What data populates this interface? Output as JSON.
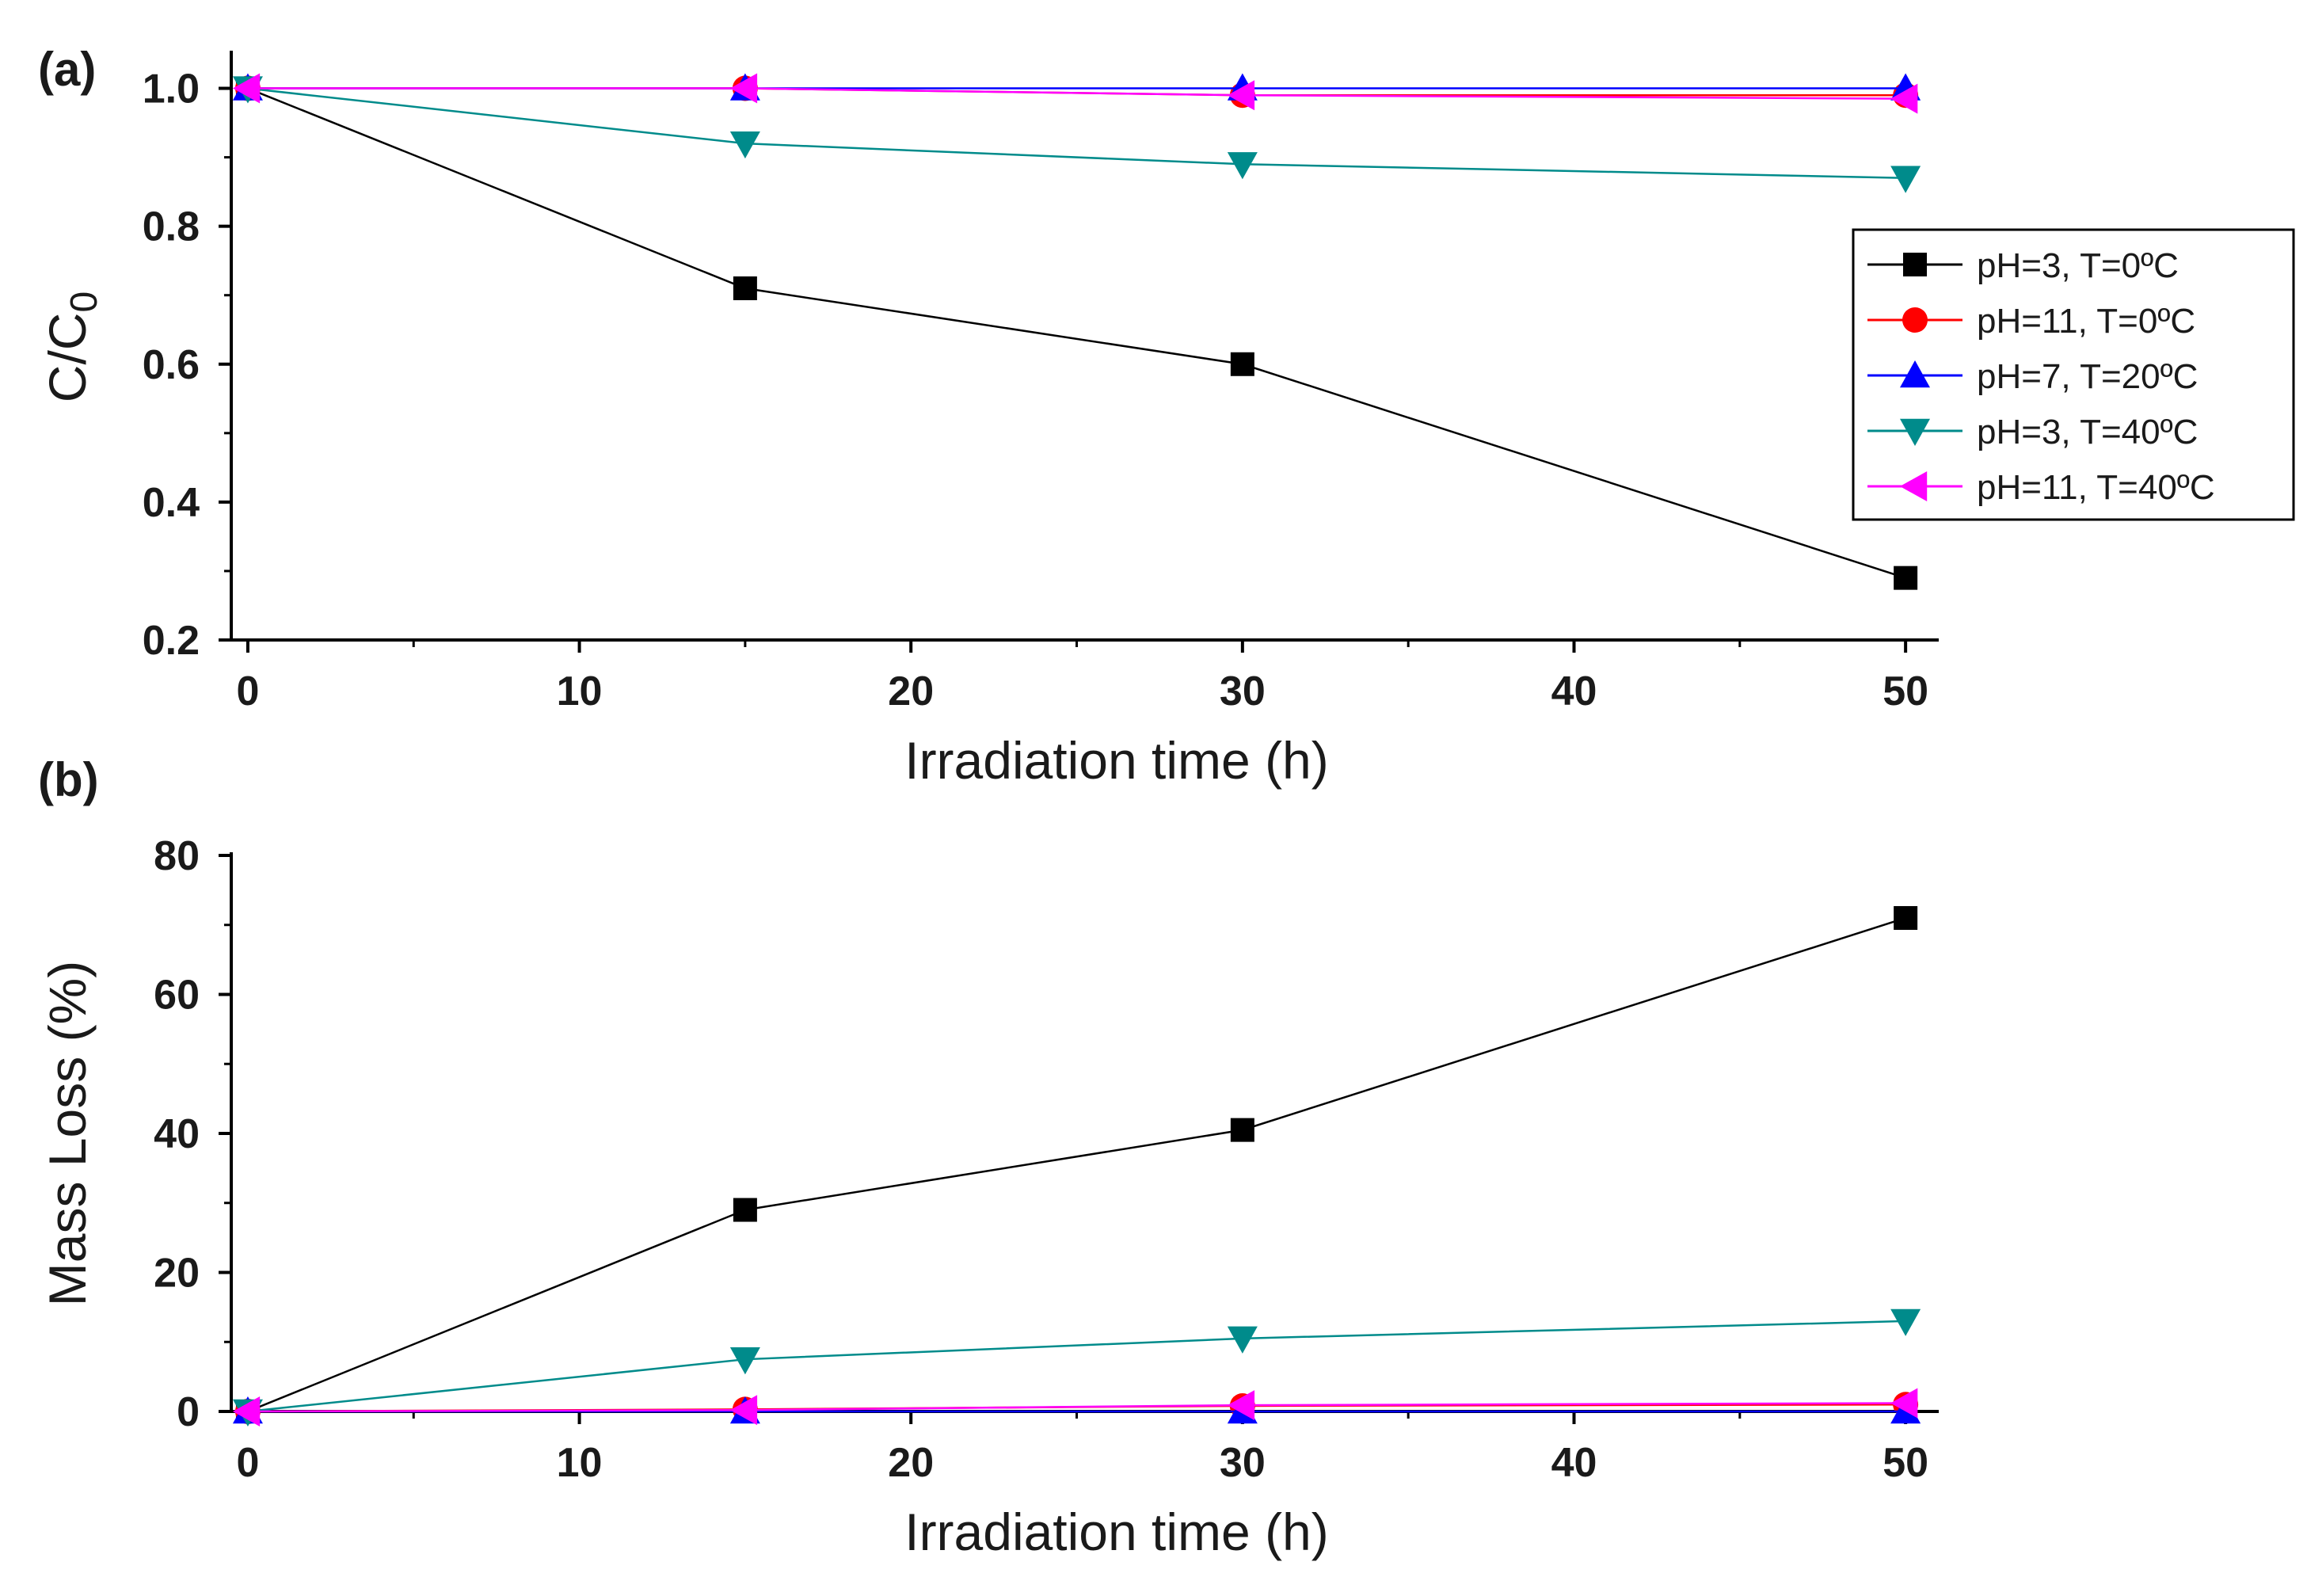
{
  "chart_data": [
    {
      "type": "line",
      "panel": "(a)",
      "xlabel": "Irradiation time (h)",
      "ylabel": {
        "main": "C/C",
        "sub": "0"
      },
      "xlim": [
        -0.5,
        51
      ],
      "ylim": [
        0.2,
        1.05
      ],
      "xticks": [
        0,
        10,
        20,
        30,
        40,
        50
      ],
      "xtick_labels": [
        "0",
        "10",
        "20",
        "30",
        "40",
        "50"
      ],
      "yticks": [
        0.2,
        0.4,
        0.6,
        0.8,
        1.0
      ],
      "ytick_labels": [
        "0.2",
        "0.4",
        "0.6",
        "0.8",
        "1.0"
      ],
      "legend_position": "right",
      "x": [
        0,
        15,
        30,
        50
      ],
      "series": [
        {
          "name": "pH=3, T=0ºC",
          "color": "#000000",
          "marker": "square",
          "values": [
            1.0,
            0.71,
            0.6,
            0.29
          ]
        },
        {
          "name": "pH=11, T=0ºC",
          "color": "#ff0000",
          "marker": "circle",
          "values": [
            1.0,
            1.0,
            0.99,
            0.99
          ]
        },
        {
          "name": "pH=7, T=20ºC",
          "color": "#0000ff",
          "marker": "triangle-up",
          "values": [
            1.0,
            1.0,
            1.0,
            1.0
          ]
        },
        {
          "name": "pH=3, T=40ºC",
          "color": "#008b8b",
          "marker": "triangle-down",
          "values": [
            1.0,
            0.92,
            0.89,
            0.87
          ]
        },
        {
          "name": "pH=11, T=40ºC",
          "color": "#ff00ff",
          "marker": "triangle-left",
          "values": [
            1.0,
            1.0,
            0.99,
            0.985
          ]
        }
      ]
    },
    {
      "type": "line",
      "panel": "(b)",
      "xlabel": "Irradiation time (h)",
      "ylabel": {
        "main": "Mass Loss (%)",
        "sub": ""
      },
      "xlim": [
        -0.5,
        51
      ],
      "ylim": [
        0,
        80
      ],
      "xticks": [
        0,
        10,
        20,
        30,
        40,
        50
      ],
      "xtick_labels": [
        "0",
        "10",
        "20",
        "30",
        "40",
        "50"
      ],
      "yticks": [
        0,
        20,
        40,
        60,
        80
      ],
      "ytick_labels": [
        "0",
        "20",
        "40",
        "60",
        "80"
      ],
      "x": [
        0,
        15,
        30,
        50
      ],
      "series": [
        {
          "name": "pH=3, T=0ºC",
          "color": "#000000",
          "marker": "square",
          "values": [
            0,
            29,
            40.5,
            71
          ]
        },
        {
          "name": "pH=11, T=0ºC",
          "color": "#ff0000",
          "marker": "circle",
          "values": [
            0,
            0.3,
            0.8,
            1.0
          ]
        },
        {
          "name": "pH=7, T=20ºC",
          "color": "#0000ff",
          "marker": "triangle-up",
          "values": [
            0,
            0,
            0,
            0
          ]
        },
        {
          "name": "pH=3, T=40ºC",
          "color": "#008b8b",
          "marker": "triangle-down",
          "values": [
            0,
            7.5,
            10.5,
            13
          ]
        },
        {
          "name": "pH=11, T=40ºC",
          "color": "#ff00ff",
          "marker": "triangle-left",
          "values": [
            0,
            0.2,
            0.9,
            1.2
          ]
        }
      ]
    }
  ]
}
